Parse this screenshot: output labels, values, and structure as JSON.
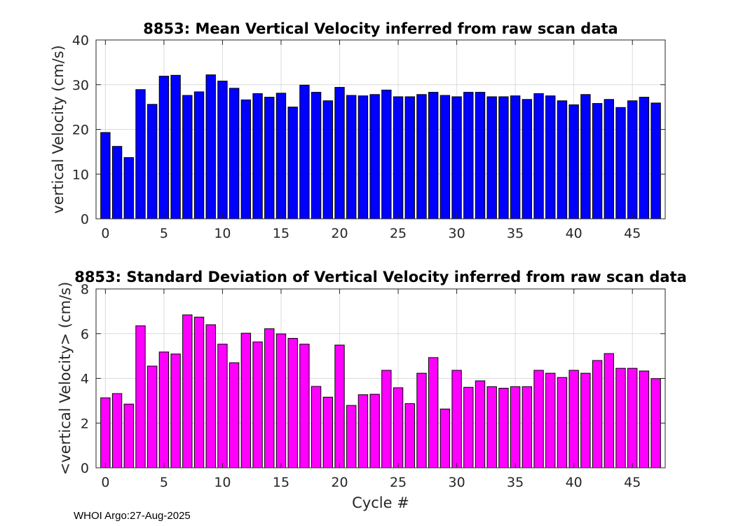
{
  "chart_data": [
    {
      "type": "bar",
      "title": "8853: Mean Vertical Velocity inferred from raw scan data",
      "xlabel": "",
      "ylabel": "vertical Velocity (cm/s)",
      "color": "#0000ff",
      "ylim": [
        0,
        40
      ],
      "yticks": [
        0,
        10,
        20,
        30,
        40
      ],
      "xlim": [
        -0.8,
        47.8
      ],
      "xticks": [
        0,
        5,
        10,
        15,
        20,
        25,
        30,
        35,
        40,
        45
      ],
      "grid": true,
      "x": [
        0,
        1,
        2,
        3,
        4,
        5,
        6,
        7,
        8,
        9,
        10,
        11,
        12,
        13,
        14,
        15,
        16,
        17,
        18,
        19,
        20,
        21,
        22,
        23,
        24,
        25,
        26,
        27,
        28,
        29,
        30,
        31,
        32,
        33,
        34,
        35,
        36,
        37,
        38,
        39,
        40,
        41,
        42,
        43,
        44,
        45,
        46,
        47
      ],
      "values": [
        19.3,
        16.2,
        13.7,
        28.9,
        25.6,
        31.9,
        32.1,
        27.6,
        28.4,
        32.2,
        30.8,
        29.2,
        26.6,
        28.0,
        27.2,
        28.1,
        25.0,
        29.9,
        28.3,
        26.4,
        29.4,
        27.6,
        27.5,
        27.8,
        28.8,
        27.3,
        27.3,
        27.8,
        28.3,
        27.6,
        27.3,
        28.3,
        28.3,
        27.3,
        27.3,
        27.5,
        26.7,
        28.0,
        27.5,
        26.4,
        25.5,
        27.8,
        25.8,
        26.7,
        24.9,
        26.4,
        27.2,
        25.9
      ]
    },
    {
      "type": "bar",
      "title": "8853: Standard Deviation of Vertical Velocity inferred from raw scan data",
      "xlabel": "Cycle #",
      "ylabel": "<vertical Velocity> (cm/s)",
      "color": "#ff00ff",
      "ylim": [
        0,
        8
      ],
      "yticks": [
        0,
        2,
        4,
        6,
        8
      ],
      "xlim": [
        -0.8,
        47.8
      ],
      "xticks": [
        0,
        5,
        10,
        15,
        20,
        25,
        30,
        35,
        40,
        45
      ],
      "grid": true,
      "x": [
        0,
        1,
        2,
        3,
        4,
        5,
        6,
        7,
        8,
        9,
        10,
        11,
        12,
        13,
        14,
        15,
        16,
        17,
        18,
        19,
        20,
        21,
        22,
        23,
        24,
        25,
        26,
        27,
        28,
        29,
        30,
        31,
        32,
        33,
        34,
        35,
        36,
        37,
        38,
        39,
        40,
        41,
        42,
        43,
        44,
        45,
        46,
        47
      ],
      "values": [
        3.13,
        3.32,
        2.85,
        6.35,
        4.55,
        5.18,
        5.09,
        6.84,
        6.74,
        6.4,
        5.53,
        4.7,
        6.02,
        5.63,
        6.22,
        5.99,
        5.79,
        5.53,
        3.64,
        3.16,
        5.49,
        2.79,
        3.27,
        3.29,
        4.36,
        3.58,
        2.87,
        4.23,
        4.93,
        2.63,
        4.36,
        3.6,
        3.89,
        3.63,
        3.56,
        3.63,
        3.63,
        4.36,
        4.23,
        4.04,
        4.36,
        4.23,
        4.8,
        5.11,
        4.45,
        4.45,
        4.33,
        3.99
      ]
    }
  ],
  "footer": "WHOI Argo:27-Aug-2025"
}
